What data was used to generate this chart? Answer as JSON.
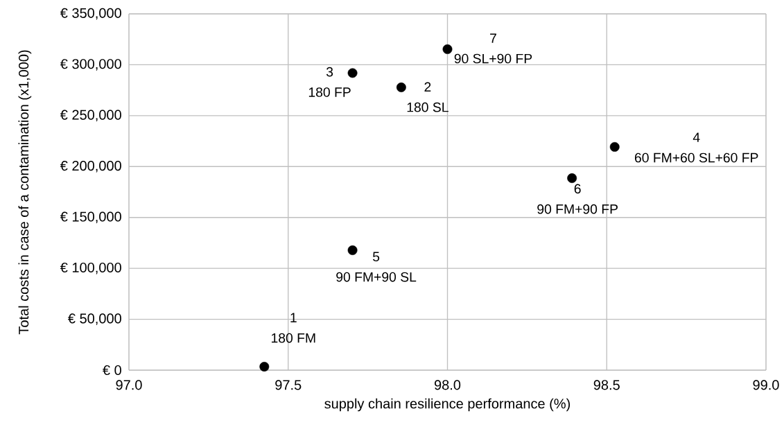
{
  "chart_data": {
    "type": "scatter",
    "xlabel": "supply chain resilience performance (%)",
    "ylabel": "Total costs in case of a contamination (x1,000)",
    "x": [
      97.425,
      97.855,
      97.702,
      98.525,
      97.702,
      98.391,
      98.0
    ],
    "values": [
      3400,
      277800,
      291900,
      219300,
      117800,
      188600,
      315300
    ],
    "color": "#000000",
    "marker": "circle",
    "grid": true,
    "xlim": [
      97.0,
      99.0
    ],
    "ylim": [
      0,
      350000
    ],
    "xticks": [
      {
        "value": 97.0,
        "label": "97.0"
      },
      {
        "value": 97.5,
        "label": "97.5"
      },
      {
        "value": 98.0,
        "label": "98.0"
      },
      {
        "value": 98.5,
        "label": "98.5"
      },
      {
        "value": 99.0,
        "label": "99.0"
      }
    ],
    "yticks": [
      {
        "value": 0,
        "label": "€ 0"
      },
      {
        "value": 50000,
        "label": "€ 50,000"
      },
      {
        "value": 100000,
        "label": "€ 100,000"
      },
      {
        "value": 150000,
        "label": "€ 150,000"
      },
      {
        "value": 200000,
        "label": "€ 200,000"
      },
      {
        "value": 250000,
        "label": "€ 250,000"
      },
      {
        "value": 300000,
        "label": "€ 300,000"
      },
      {
        "value": 350000,
        "label": "€ 350,000"
      }
    ],
    "annotations": [
      "1",
      "180 FM",
      "2",
      "180 SL",
      "3",
      "180 FP",
      "4",
      "60 FM+60 SL+60 FP",
      "5",
      "90 FM+90 SL",
      "6",
      "90 FM+90 FP",
      "7",
      "90 SL+90 FP"
    ]
  }
}
